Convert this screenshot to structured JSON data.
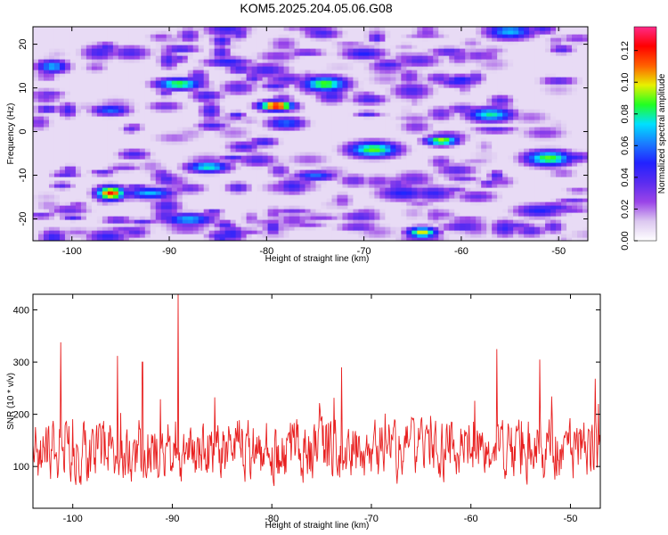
{
  "title": "KOM5.2025.204.05.06.G08",
  "chart_data": [
    {
      "type": "heatmap",
      "xlabel": "Height of straight line (km)",
      "ylabel": "Frequency (Hz)",
      "xlim": [
        -104,
        -47
      ],
      "ylim": [
        -25,
        24
      ],
      "x_ticks": [
        -100,
        -90,
        -80,
        -70,
        -60,
        -50
      ],
      "y_ticks": [
        -20,
        -10,
        0,
        10,
        20
      ],
      "x_tick_labels": [
        "-100",
        "-90",
        "-80",
        "-70",
        "-60",
        "-50"
      ],
      "y_tick_labels": [
        "-20",
        "-10",
        "0",
        "10",
        "20"
      ],
      "colorbar": {
        "label": "Normalized spectral amplitude",
        "range": [
          0.0,
          0.135
        ],
        "ticks": [
          0.0,
          0.02,
          0.04,
          0.06,
          0.08,
          0.1,
          0.12
        ],
        "tick_labels": [
          "0.00",
          "0.02",
          "0.04",
          "0.06",
          "0.08",
          "0.10",
          "0.12"
        ],
        "colormap": [
          "#ffffff",
          "#dcc8f0",
          "#9a44e8",
          "#5a2cf0",
          "#2222ff",
          "#1a7cff",
          "#00e0ff",
          "#22ff22",
          "#e8f000",
          "#ff6000",
          "#ff0000",
          "#ff2a88"
        ]
      },
      "peaks": [
        {
          "x": -79,
          "y": 6,
          "value": 0.13
        },
        {
          "x": -96,
          "y": -14,
          "value": 0.12
        },
        {
          "x": -64,
          "y": -23,
          "value": 0.1
        },
        {
          "x": -62,
          "y": -2,
          "value": 0.1
        },
        {
          "x": -89,
          "y": 11,
          "value": 0.09
        },
        {
          "x": -74,
          "y": 11,
          "value": 0.09
        },
        {
          "x": -69,
          "y": -4,
          "value": 0.09
        },
        {
          "x": -51,
          "y": -6,
          "value": 0.09
        },
        {
          "x": -57,
          "y": 4,
          "value": 0.08
        },
        {
          "x": -86,
          "y": -8,
          "value": 0.08
        },
        {
          "x": -92,
          "y": -14,
          "value": 0.07
        },
        {
          "x": -102,
          "y": 15,
          "value": 0.07
        },
        {
          "x": -55,
          "y": 23,
          "value": 0.07
        },
        {
          "x": -88,
          "y": -20,
          "value": 0.07
        },
        {
          "x": -75,
          "y": -10,
          "value": 0.06
        },
        {
          "x": -78,
          "y": 2,
          "value": 0.06
        },
        {
          "x": -96,
          "y": 5,
          "value": 0.06
        },
        {
          "x": -60,
          "y": 12,
          "value": 0.05
        },
        {
          "x": -70,
          "y": 18,
          "value": 0.05
        },
        {
          "x": -84,
          "y": 16,
          "value": 0.05
        },
        {
          "x": -66,
          "y": -14,
          "value": 0.05
        },
        {
          "x": -52,
          "y": -18,
          "value": 0.05
        }
      ]
    },
    {
      "type": "line",
      "xlabel": "Height of straight line (km)",
      "ylabel": "SNR (10 * v/v)",
      "xlim": [
        -104,
        -47
      ],
      "ylim": [
        20,
        430
      ],
      "x_ticks": [
        -100,
        -90,
        -80,
        -70,
        -60,
        -50
      ],
      "y_ticks": [
        100,
        200,
        300,
        400
      ],
      "x_tick_labels": [
        "-100",
        "-90",
        "-80",
        "-70",
        "-60",
        "-50"
      ],
      "y_tick_labels": [
        "100",
        "200",
        "300",
        "400"
      ],
      "color": "#e82020",
      "baseline_mean": 130,
      "notable_points": [
        {
          "x": -89.4,
          "y": 430
        },
        {
          "x": -101.2,
          "y": 338
        },
        {
          "x": -57.4,
          "y": 325
        },
        {
          "x": -95.5,
          "y": 312
        },
        {
          "x": -73.0,
          "y": 290
        },
        {
          "x": -93.0,
          "y": 300
        },
        {
          "x": -47.5,
          "y": 268
        },
        {
          "x": -53.1,
          "y": 305
        }
      ]
    }
  ]
}
